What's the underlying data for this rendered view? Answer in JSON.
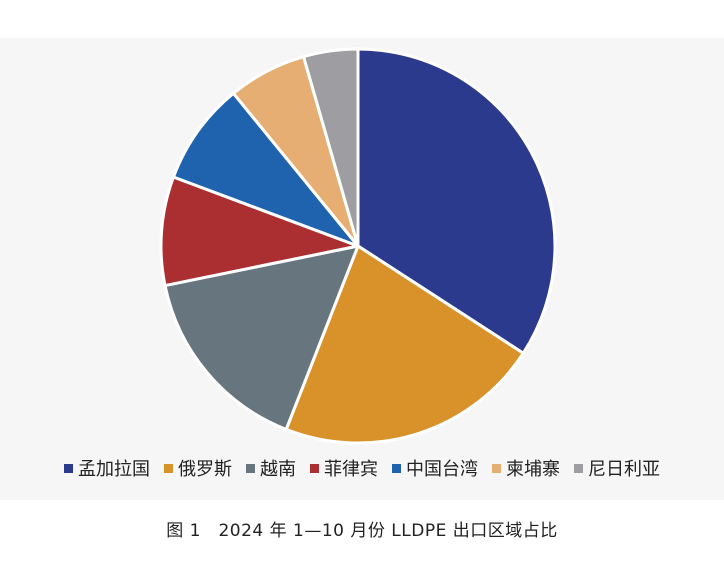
{
  "chart_data": {
    "type": "pie",
    "title": "",
    "slices": [
      {
        "label": "孟加拉国",
        "value": 34.5,
        "color": "#2b3a8c"
      },
      {
        "label": "俄罗斯",
        "value": 22.0,
        "color": "#d9912a"
      },
      {
        "label": "越南",
        "value": 16.0,
        "color": "#67757e"
      },
      {
        "label": "菲律宾",
        "value": 9.0,
        "color": "#ab2f30"
      },
      {
        "label": "中国台湾",
        "value": 8.5,
        "color": "#1f62ad"
      },
      {
        "label": "柬埔寨",
        "value": 6.5,
        "color": "#e6ae72"
      },
      {
        "label": "尼日利亚",
        "value": 4.5,
        "color": "#9d9da2"
      }
    ],
    "legend_position": "bottom"
  },
  "caption": "图 1　2024 年 1—10 月份 LLDPE 出口区域占比"
}
